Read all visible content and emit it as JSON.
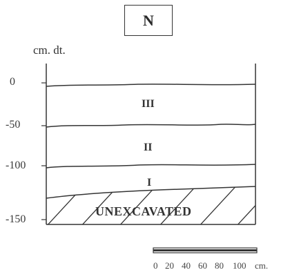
{
  "north_label": "N",
  "unit_label": "cm. dt.",
  "depth_ticks": [
    {
      "label": "0",
      "value": 0
    },
    {
      "label": "-50",
      "value": -50
    },
    {
      "label": "-100",
      "value": -100
    },
    {
      "label": "-150",
      "value": -150
    }
  ],
  "layers": [
    {
      "label": "III"
    },
    {
      "label": "II"
    },
    {
      "label": "I"
    }
  ],
  "unexcavated_label": "UNEXCAVATED",
  "scale_bar": {
    "labels": [
      "0",
      "20",
      "40",
      "60",
      "80",
      "100",
      "cm."
    ]
  }
}
